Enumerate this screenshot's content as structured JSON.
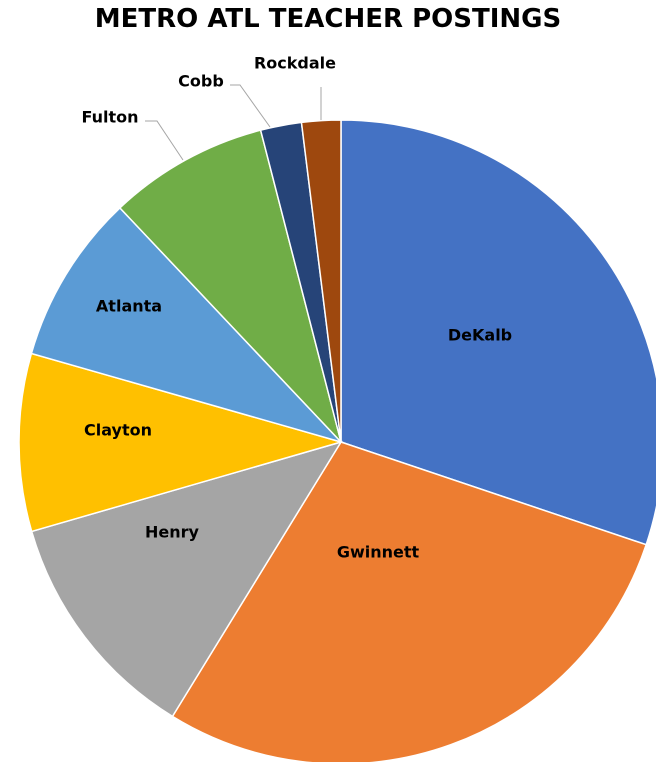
{
  "chart_data": {
    "type": "pie",
    "title": "METRO ATL TEACHER POSTINGS",
    "categories": [
      "DeKalb",
      "Gwinnett",
      "Henry",
      "Clayton",
      "Atlanta",
      "Fulton",
      "Cobb",
      "Rockdale"
    ],
    "values": [
      30.8,
      29.2,
      12.0,
      9.1,
      8.7,
      8.2,
      2.1,
      2.0
    ],
    "colors": [
      "#4472c4",
      "#ed7d31",
      "#a5a5a5",
      "#ffc000",
      "#5b9bd5",
      "#70ad47",
      "#264478",
      "#9e480e"
    ],
    "start_angle": "12 o'clock",
    "direction": "clockwise",
    "legend": "none",
    "data_labels": "category name"
  }
}
